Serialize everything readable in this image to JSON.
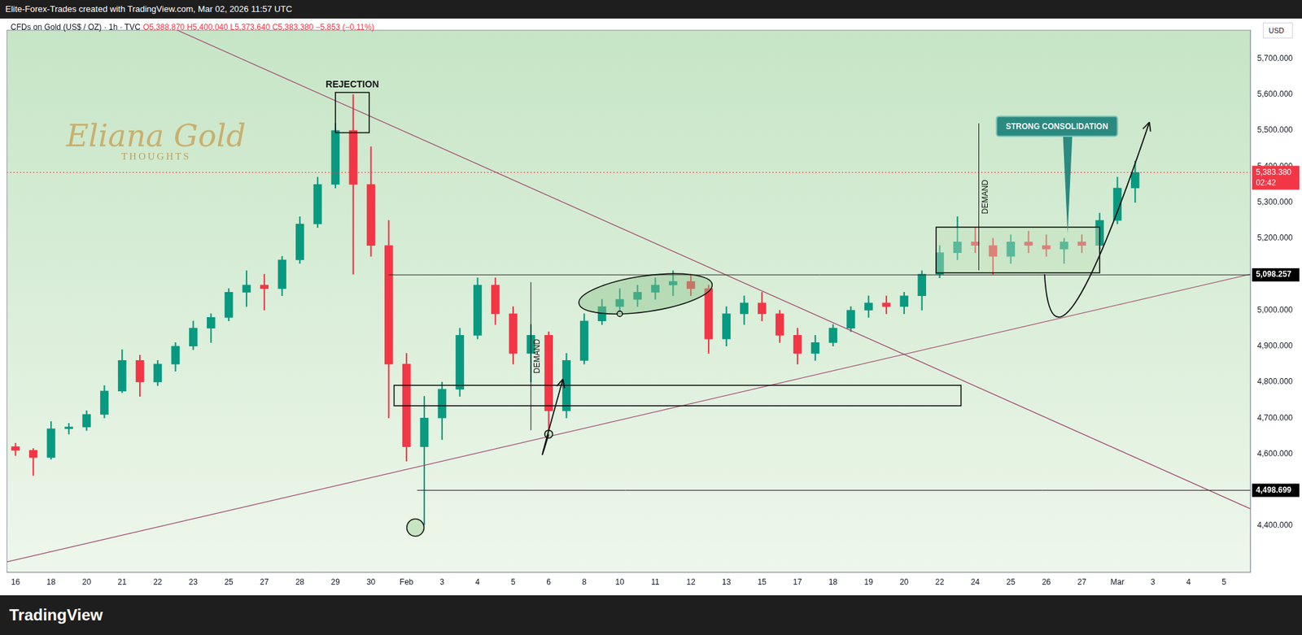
{
  "header": {
    "attribution": "Elite-Forex-Trades created with TradingView.com, Mar 02, 2026 11:57 UTC",
    "symbol": "CFDs on Gold (US$ / OZ) · 1h · TVC",
    "ohlc_text": "O5,388.870 H5,400.040 L5,373.640 C5,383.380 −5.853 (−0.11%)",
    "currency": "USD",
    "watermark": [
      "Eliana Gold",
      "THOUGHTS"
    ],
    "footer": "TradingView"
  },
  "chart_data": {
    "type": "candlestick",
    "categories": [
      "16",
      null,
      "18",
      null,
      "20",
      null,
      "21",
      null,
      "22",
      null,
      "23",
      null,
      "25",
      null,
      "27",
      null,
      "28",
      null,
      "29",
      null,
      "30",
      null,
      "Feb",
      null,
      "3",
      null,
      "4",
      null,
      "5",
      null,
      "6",
      null,
      "8",
      null,
      "10",
      null,
      "11",
      null,
      "12",
      null,
      "13",
      null,
      "15",
      null,
      "17",
      null,
      "18",
      null,
      "19",
      null,
      "20",
      null,
      "22",
      null,
      "24",
      null,
      "25",
      null,
      "26",
      null,
      "27",
      null,
      "Mar",
      null,
      "3",
      null,
      "4",
      null,
      "5",
      null
    ],
    "open": [
      4620,
      4610,
      4590,
      4670,
      4675,
      4710,
      4775,
      4860,
      4800,
      4850,
      4900,
      4950,
      4980,
      5050,
      5070,
      5060,
      5140,
      5240,
      5350,
      5500,
      5350,
      5180,
      4850,
      4620,
      4700,
      4780,
      4930,
      5070,
      4990,
      4880,
      4930,
      4720,
      4860,
      4970,
      5010,
      5030,
      5050,
      5070,
      5080,
      5060,
      4920,
      4990,
      5020,
      4990,
      4930,
      4880,
      4910,
      4950,
      5000,
      5020,
      5010,
      5040,
      5100,
      5160,
      5190,
      5180,
      5150,
      5190,
      5180,
      5170,
      5190,
      5180,
      5250,
      5340,
      null,
      null,
      null,
      null,
      null,
      null
    ],
    "high": [
      4630,
      4615,
      4690,
      4685,
      4720,
      4790,
      4890,
      4875,
      4860,
      4910,
      4970,
      4990,
      5060,
      5110,
      5100,
      5150,
      5260,
      5370,
      5520,
      5600,
      5455,
      5250,
      4880,
      4760,
      4800,
      4950,
      5090,
      5090,
      5010,
      4960,
      4940,
      4880,
      4990,
      5030,
      5060,
      5070,
      5090,
      5110,
      5100,
      5070,
      5010,
      5040,
      5050,
      5000,
      4950,
      4930,
      4960,
      5010,
      5040,
      5040,
      5050,
      5110,
      5180,
      5260,
      5230,
      5200,
      5210,
      5220,
      5210,
      5200,
      5210,
      5270,
      5370,
      5415,
      null,
      null,
      null,
      null,
      null,
      null
    ],
    "low": [
      4595,
      4540,
      4585,
      4655,
      4665,
      4700,
      4770,
      4760,
      4790,
      4830,
      4890,
      4910,
      4970,
      5010,
      5000,
      5040,
      5130,
      5230,
      5340,
      5100,
      5150,
      4700,
      4580,
      4402,
      4640,
      4760,
      4920,
      4960,
      4850,
      4800,
      4660,
      4700,
      4850,
      4960,
      4990,
      5010,
      5030,
      5040,
      5040,
      4880,
      4900,
      4960,
      4970,
      4910,
      4850,
      4860,
      4900,
      4940,
      4980,
      4990,
      4990,
      5000,
      5090,
      5140,
      5160,
      5100,
      5130,
      5160,
      5150,
      5130,
      5160,
      5170,
      5240,
      5300,
      null,
      null,
      null,
      null,
      null,
      null
    ],
    "close": [
      4610,
      4590,
      4670,
      4675,
      4710,
      4775,
      4860,
      4800,
      4850,
      4900,
      4950,
      4980,
      5050,
      5070,
      5060,
      5140,
      5240,
      5350,
      5500,
      5350,
      5180,
      4850,
      4620,
      4700,
      4780,
      4930,
      5070,
      4990,
      4880,
      4930,
      4720,
      4860,
      4970,
      5010,
      5030,
      5050,
      5070,
      5080,
      5060,
      4920,
      4990,
      5020,
      4990,
      4930,
      4880,
      4910,
      4950,
      5000,
      5020,
      5010,
      5040,
      5100,
      5160,
      5190,
      5180,
      5150,
      5190,
      5180,
      5170,
      5190,
      5180,
      5250,
      5340,
      5383.38,
      null,
      null,
      null,
      null,
      null,
      null
    ],
    "colors": [
      "#f23645",
      "#f23645",
      "#089981",
      "#089981",
      "#089981",
      "#089981",
      "#089981",
      "#f23645",
      "#089981",
      "#089981",
      "#089981",
      "#089981",
      "#089981",
      "#089981",
      "#f23645",
      "#089981",
      "#089981",
      "#089981",
      "#089981",
      "#f23645",
      "#f23645",
      "#f23645",
      "#f23645",
      "#089981",
      "#089981",
      "#089981",
      "#089981",
      "#f23645",
      "#f23645",
      "#089981",
      "#f23645",
      "#089981",
      "#089981",
      "#089981",
      "#089981",
      "#089981",
      "#089981",
      "#089981",
      "#f23645",
      "#f23645",
      "#089981",
      "#089981",
      "#f23645",
      "#f23645",
      "#f23645",
      "#089981",
      "#089981",
      "#089981",
      "#089981",
      "#f23645",
      "#089981",
      "#089981",
      "#089981",
      "#089981",
      "#f23645",
      "#f23645",
      "#089981",
      "#f23645",
      "#f23645",
      "#089981",
      "#f23645",
      "#089981",
      "#089981",
      "#089981",
      null,
      null,
      null,
      null,
      null,
      null
    ],
    "ylim": [
      4270,
      5780
    ],
    "yticks": [
      {
        "value": 4400,
        "label": "4,400.000"
      },
      {
        "value": 4500,
        "label": "4,500.000"
      },
      {
        "value": 4600,
        "label": "4,600.000"
      },
      {
        "value": 4700,
        "label": "4,700.000"
      },
      {
        "value": 4800,
        "label": "4,800.000"
      },
      {
        "value": 4900,
        "label": "4,900.000"
      },
      {
        "value": 5000,
        "label": "5,000.000"
      },
      {
        "value": 5100,
        "label": "5,100.000"
      },
      {
        "value": 5200,
        "label": "5,200.000"
      },
      {
        "value": 5300,
        "label": "5,300.000"
      },
      {
        "value": 5400,
        "label": "5,400.000"
      },
      {
        "value": 5500,
        "label": "5,500.000"
      },
      {
        "value": 5600,
        "label": "5,600.000"
      },
      {
        "value": 5700,
        "label": "5,700.000"
      }
    ],
    "grid": false,
    "price_tag": {
      "value": 5383.38,
      "label": "5,383.380",
      "countdown": "02:42"
    },
    "levels": [
      {
        "value": 5098.257,
        "label": "5,098.257",
        "from": 21
      },
      {
        "value": 4498.699,
        "label": "4,498.699",
        "from": 22.6
      }
    ],
    "trendlines": [
      [
        [
          18,
          5583
        ],
        [
          68,
          4480
        ]
      ],
      [
        [
          0.6,
          4312
        ],
        [
          68.5,
          5089
        ]
      ]
    ],
    "boxes": [
      {
        "x": [
          18,
          19.9
        ],
        "y": [
          5494,
          5606
        ],
        "label": "REJECTION"
      },
      {
        "x": [
          21.3,
          53.2
        ],
        "y": [
          4734,
          4791
        ]
      },
      {
        "x": [
          51.8,
          61
        ],
        "y": [
          5104,
          5231
        ]
      }
    ],
    "ellipse": [
      [
        31.7,
        5019
      ],
      [
        39.2,
        5072
      ]
    ],
    "circles": [
      [
        22.5,
        4395
      ],
      [
        30,
        4655
      ],
      [
        34,
        4990
      ]
    ],
    "demand_marks": [
      {
        "x": 29,
        "y": [
          4666,
          5078
        ],
        "label": "DEMAND"
      },
      {
        "x": 54.2,
        "y": [
          5111,
          5520
        ],
        "label": "DEMAND"
      }
    ],
    "arrows": [
      [
        [
          30,
          4655
        ],
        [
          29.7,
          4610
        ],
        [
          30.8,
          4808
        ]
      ],
      [
        [
          57.9,
          5100
        ],
        [
          59.6,
          5019
        ],
        [
          63.8,
          5523
        ]
      ]
    ],
    "callout": {
      "label": "STRONG CONSOLIDATION",
      "x": 58.6,
      "y": 5512,
      "tip": [
        59.2,
        5213
      ]
    }
  }
}
